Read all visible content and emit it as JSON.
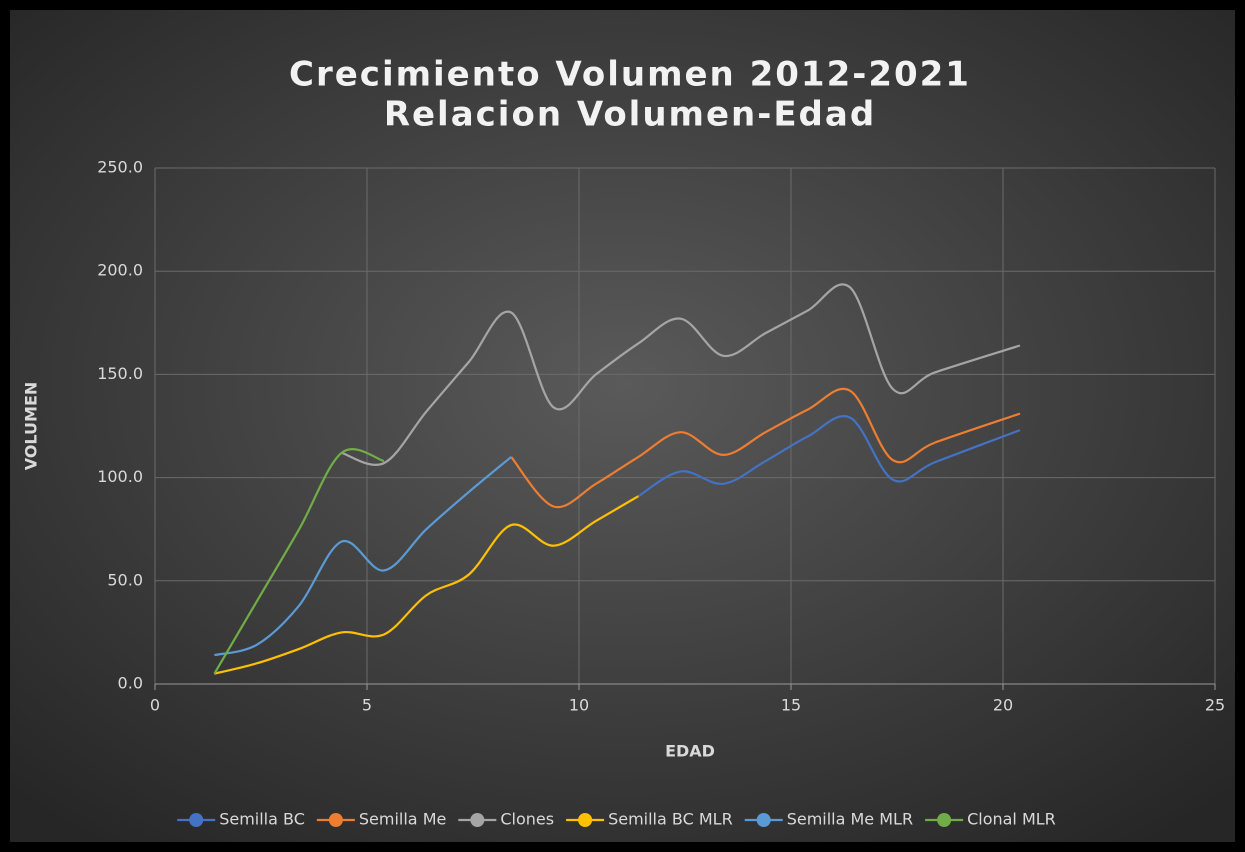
{
  "chart_data": {
    "type": "scatter-smooth",
    "title": [
      "Crecimiento Volumen 2012-2021",
      "Relacion Volumen-Edad"
    ],
    "x_label": "EDAD",
    "y_label": "VOLUMEN",
    "xlim": [
      0,
      25
    ],
    "xticks": [
      0,
      5,
      10,
      15,
      20,
      25
    ],
    "ylim": [
      0,
      250
    ],
    "yticks": [
      {
        "value": 0,
        "label": "0.0"
      },
      {
        "value": 50,
        "label": "50.0"
      },
      {
        "value": 100,
        "label": "100.0"
      },
      {
        "value": 150,
        "label": "150.0"
      },
      {
        "value": 200,
        "label": "200.0"
      },
      {
        "value": 250,
        "label": "250.0"
      }
    ],
    "grid": true,
    "legend": "bottom",
    "series": [
      {
        "name": "Semilla BC",
        "color": "#4472c4",
        "x": [
          11.4,
          12.4,
          13.4,
          14.4,
          15.4,
          16.4,
          17.4,
          18.4,
          20.4
        ],
        "values": [
          91,
          103,
          97,
          108,
          120,
          129,
          99,
          107.5,
          123
        ]
      },
      {
        "name": "Semilla Me",
        "color": "#ed7d31",
        "x": [
          8.4,
          9.4,
          10.4,
          11.4,
          12.4,
          13.4,
          14.4,
          15.4,
          16.4,
          17.4,
          18.4,
          20.4
        ],
        "values": [
          110,
          86,
          97,
          110,
          122,
          111,
          122,
          133,
          142,
          108.5,
          117,
          131
        ]
      },
      {
        "name": "Clones",
        "color": "#a5a5a5",
        "x": [
          4.4,
          5.4,
          6.4,
          7.4,
          8.4,
          9.4,
          10.4,
          11.4,
          12.4,
          13.4,
          14.4,
          15.4,
          16.4,
          17.4,
          18.4,
          20.4
        ],
        "values": [
          112,
          107,
          132,
          156,
          180,
          134,
          150,
          165,
          177,
          159,
          170,
          181,
          192,
          143,
          151,
          164
        ]
      },
      {
        "name": "Semilla BC MLR",
        "color": "#ffc000",
        "x": [
          1.4,
          2.4,
          3.4,
          4.4,
          5.4,
          6.4,
          7.4,
          8.4,
          9.4,
          10.4,
          11.4
        ],
        "values": [
          5,
          10,
          17,
          25,
          24,
          43,
          53,
          77,
          67,
          79,
          91
        ]
      },
      {
        "name": "Semilla Me MLR",
        "color": "#5b9bd5",
        "x": [
          1.4,
          2.4,
          3.4,
          4.4,
          5.4,
          6.4,
          7.4,
          8.4
        ],
        "values": [
          14,
          19,
          38,
          69,
          55,
          75,
          93,
          110
        ]
      },
      {
        "name": "Clonal MLR",
        "color": "#70ad47",
        "x": [
          1.4,
          2.4,
          3.4,
          4.4,
          5.4
        ],
        "values": [
          5,
          40,
          75,
          112,
          108
        ]
      }
    ]
  }
}
